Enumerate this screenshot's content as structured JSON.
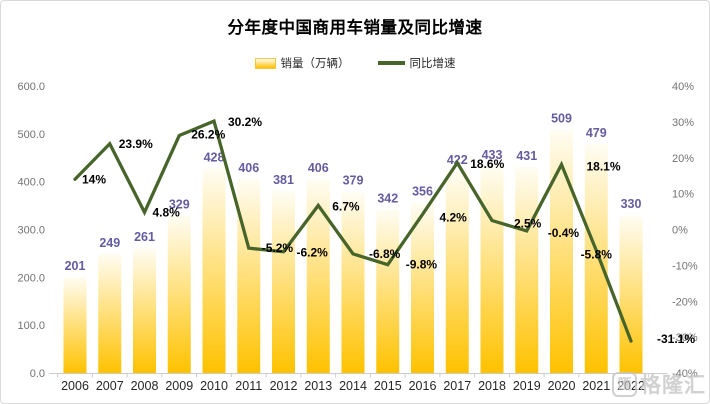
{
  "title": "分年度中国商用车销量及同比增速",
  "legend": {
    "items": [
      {
        "label": "销量（万辆）",
        "swatch": "bar-gradient-swatch"
      },
      {
        "label": "同比增速",
        "swatch": "green-line-swatch"
      }
    ]
  },
  "watermark": {
    "logo_glyph": "匯",
    "text": "格隆汇"
  },
  "colors": {
    "bar_gradient_top": "#fffdf4",
    "bar_gradient_bottom": "#ffc200",
    "line": "#47652a",
    "bar_value_label": "#655ca0",
    "pct_label": "#000000",
    "axis_label": "#737373",
    "year_label": "#262626",
    "axis_line": "#cccccc",
    "frame_border": "#d9d9d9",
    "watermark": "#c6c6c6"
  },
  "chart_data": {
    "type": "combo",
    "title": "分年度中国商用车销量及同比增速",
    "categories": [
      "2006",
      "2007",
      "2008",
      "2009",
      "2010",
      "2011",
      "2012",
      "2013",
      "2014",
      "2015",
      "2016",
      "2017",
      "2018",
      "2019",
      "2020",
      "2021",
      "2022"
    ],
    "series": [
      {
        "name": "销量（万辆）",
        "type": "bar",
        "axis": "left",
        "values": [
          201,
          249,
          261,
          329,
          428,
          406,
          381,
          406,
          379,
          342,
          356,
          422,
          433,
          431,
          509,
          479,
          330
        ]
      },
      {
        "name": "同比增速",
        "type": "line",
        "axis": "right",
        "values": [
          14,
          23.9,
          4.8,
          26.2,
          30.2,
          -5.2,
          -6.2,
          6.7,
          -6.8,
          -9.8,
          4.2,
          18.6,
          2.5,
          -0.4,
          18.1,
          -5.8,
          -31.1
        ],
        "labels": [
          "14%",
          "23.9%",
          "4.8%",
          "26.2%",
          "30.2%",
          "-5.2%",
          "-6.2%",
          "6.7%",
          "-6.8%",
          "-9.8%",
          "4.2%",
          "18.6%",
          "2.5%",
          "-0.4%",
          "18.1%",
          "-5.8%",
          "-31.1%"
        ]
      }
    ],
    "left_axis": {
      "min": 0,
      "max": 600,
      "step": 100,
      "ticks": [
        "600.0",
        "500.0",
        "400.0",
        "300.0",
        "200.0",
        "100.0",
        "0.0"
      ]
    },
    "right_axis": {
      "min": -40,
      "max": 40,
      "step": 10,
      "ticks": [
        "40%",
        "30%",
        "20%",
        "10%",
        "0%",
        "-10%",
        "-20%",
        "-30%",
        "-40%"
      ]
    },
    "grid": false,
    "legend_position": "top"
  }
}
